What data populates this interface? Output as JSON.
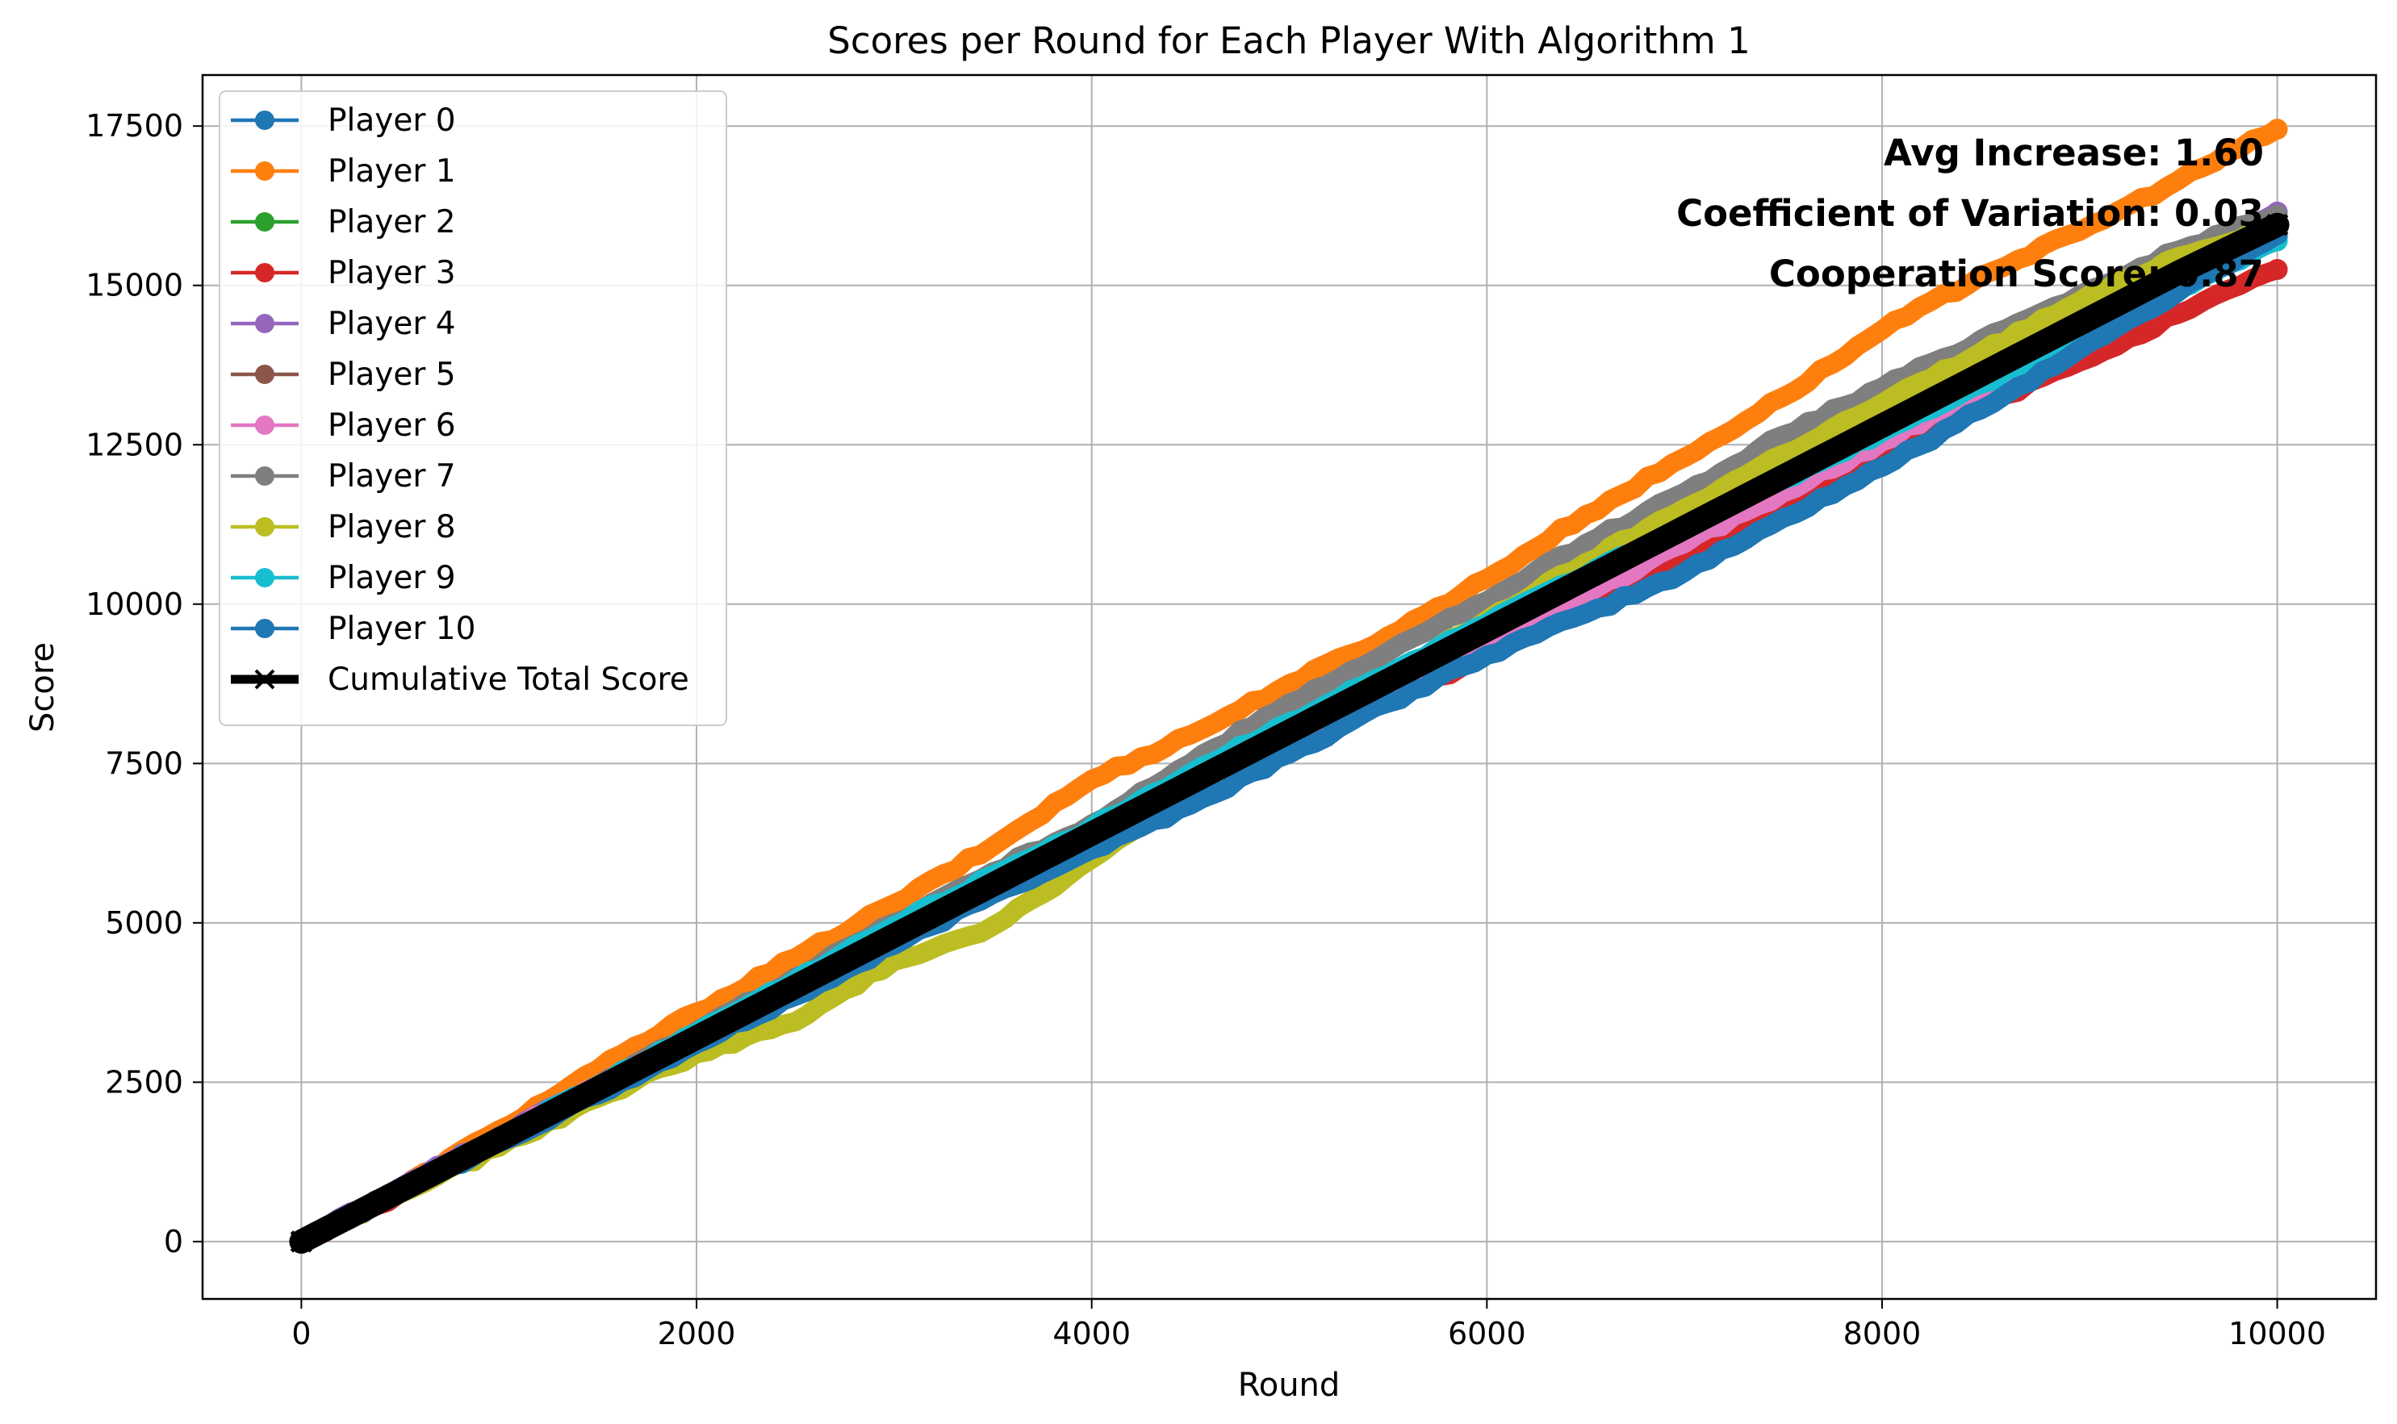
{
  "chart_data": {
    "type": "line",
    "title": "Scores per Round for Each Player With Algorithm 1",
    "xlabel": "Round",
    "ylabel": "Score",
    "xlim": [
      -500,
      10500
    ],
    "ylim": [
      -900,
      18300
    ],
    "xticks": [
      0,
      2000,
      4000,
      6000,
      8000,
      10000
    ],
    "yticks": [
      0,
      2500,
      5000,
      7500,
      10000,
      12500,
      15000,
      17500
    ],
    "grid": true,
    "legend_position": "top-left",
    "x": [
      0,
      500,
      1000,
      1500,
      2000,
      2500,
      3000,
      3500,
      4000,
      4500,
      5000,
      5500,
      6000,
      6500,
      7000,
      7500,
      8000,
      8500,
      9000,
      9500,
      10000
    ],
    "series": [
      {
        "name": "Player 0",
        "color": "#1f77b4",
        "values": [
          0,
          800,
          1580,
          2380,
          3180,
          3980,
          4780,
          5580,
          6300,
          7100,
          7900,
          8650,
          9450,
          10250,
          11000,
          11800,
          12600,
          13400,
          14150,
          14950,
          15750
        ]
      },
      {
        "name": "Player 1",
        "color": "#ff7f0e",
        "values": [
          0,
          830,
          1750,
          2700,
          3600,
          4450,
          5300,
          6200,
          7250,
          7950,
          8750,
          9500,
          10400,
          11400,
          12300,
          13250,
          14300,
          15150,
          15850,
          16650,
          17450
        ]
      },
      {
        "name": "Player 2",
        "color": "#2ca02c",
        "values": [
          0,
          790,
          1600,
          2400,
          3200,
          4000,
          4800,
          5600,
          6400,
          7200,
          8000,
          8800,
          9550,
          10350,
          11150,
          11950,
          12750,
          13550,
          14350,
          15150,
          15900
        ]
      },
      {
        "name": "Player 3",
        "color": "#d62728",
        "values": [
          0,
          760,
          1550,
          2350,
          3150,
          3950,
          4750,
          5550,
          6200,
          6950,
          7700,
          8500,
          9200,
          10000,
          10800,
          11500,
          12300,
          13100,
          13800,
          14550,
          15250
        ]
      },
      {
        "name": "Player 4",
        "color": "#9467bd",
        "values": [
          0,
          850,
          1650,
          2450,
          3250,
          4050,
          4850,
          5650,
          6450,
          7250,
          8050,
          8850,
          9650,
          10450,
          11250,
          12050,
          12850,
          13650,
          14550,
          15350,
          16150
        ]
      },
      {
        "name": "Player 5",
        "color": "#8c564b",
        "values": [
          0,
          780,
          1580,
          2380,
          3180,
          3980,
          4780,
          5580,
          6380,
          7180,
          7980,
          8780,
          9580,
          10380,
          11180,
          11980,
          12780,
          13580,
          14380,
          15180,
          15950
        ]
      },
      {
        "name": "Player 6",
        "color": "#e377c2",
        "values": [
          0,
          810,
          1620,
          2450,
          3250,
          4050,
          4850,
          5650,
          6350,
          7100,
          7850,
          8600,
          9350,
          10150,
          10950,
          11750,
          12550,
          13350,
          14200,
          15000,
          15800
        ]
      },
      {
        "name": "Player 7",
        "color": "#7f7f7f",
        "values": [
          0,
          800,
          1620,
          2450,
          3300,
          4150,
          5000,
          5800,
          6550,
          7500,
          8450,
          9250,
          10050,
          10950,
          11750,
          12650,
          13400,
          14150,
          14850,
          15550,
          16100
        ]
      },
      {
        "name": "Player 8",
        "color": "#bcbd22",
        "values": [
          0,
          750,
          1480,
          2250,
          2950,
          3450,
          4400,
          4950,
          6000,
          7000,
          7950,
          8850,
          9750,
          10650,
          11500,
          12350,
          13150,
          13950,
          14750,
          15450,
          15950
        ]
      },
      {
        "name": "Player 9",
        "color": "#17becf",
        "values": [
          0,
          800,
          1620,
          2450,
          3280,
          4100,
          4950,
          5750,
          6500,
          7350,
          8150,
          8900,
          9700,
          10450,
          11200,
          11950,
          12700,
          13450,
          14200,
          14950,
          15700
        ]
      },
      {
        "name": "Player 10",
        "color": "#1f77b4",
        "values": [
          0,
          780,
          1550,
          2300,
          3100,
          3850,
          4650,
          5450,
          6150,
          6850,
          7650,
          8450,
          9200,
          9850,
          10500,
          11350,
          12150,
          13050,
          14000,
          14900,
          15800
        ]
      },
      {
        "name": "Cumulative Total Score",
        "color": "#000000",
        "values": [
          0,
          800,
          1600,
          2400,
          3200,
          4000,
          4800,
          5600,
          6400,
          7200,
          8000,
          8800,
          9600,
          10400,
          11200,
          12000,
          12800,
          13600,
          14400,
          15200,
          15950
        ]
      }
    ],
    "annotations": [
      "Avg Increase: 1.60",
      "Coefficient of Variation: 0.03",
      "Cooperation Score: 0.87"
    ]
  }
}
